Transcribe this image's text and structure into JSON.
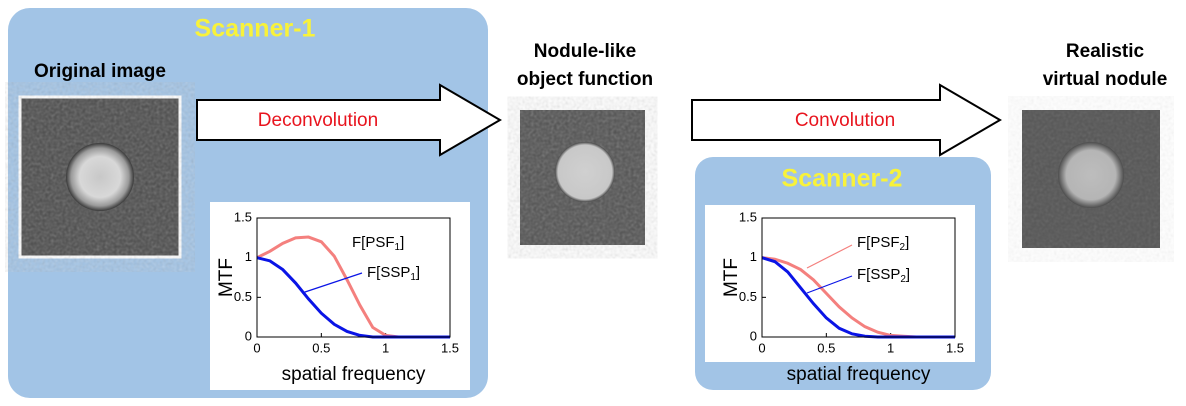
{
  "scanner1": {
    "title": "Scanner-1",
    "chart": {
      "type": "line",
      "xlabel": "spatial frequency",
      "ylabel": "MTF",
      "xlim": [
        0,
        1.5
      ],
      "ylim": [
        0,
        1.5
      ],
      "xticks": [
        0,
        0.5,
        1,
        1.5
      ],
      "yticks": [
        0,
        0.5,
        1,
        1.5
      ],
      "x": [
        0,
        0.1,
        0.2,
        0.3,
        0.4,
        0.5,
        0.6,
        0.7,
        0.8,
        0.9,
        1.0,
        1.1,
        1.2,
        1.3,
        1.4,
        1.5
      ],
      "series": [
        {
          "name": [
            "F[PSF",
            "1",
            "]"
          ],
          "color": "#f4807e",
          "values": [
            1,
            1.08,
            1.18,
            1.25,
            1.26,
            1.2,
            1.02,
            0.72,
            0.4,
            0.12,
            0.02,
            0,
            0,
            0,
            0,
            0
          ]
        },
        {
          "name": [
            "F[SSP",
            "1",
            "]"
          ],
          "color": "#0a14e6",
          "values": [
            1,
            0.96,
            0.85,
            0.68,
            0.48,
            0.3,
            0.16,
            0.07,
            0.02,
            0,
            0,
            0,
            0,
            0,
            0,
            0
          ]
        }
      ]
    }
  },
  "original_image": {
    "label": "Original image"
  },
  "arrow1": {
    "label": "Deconvolution"
  },
  "object_function": {
    "label_lines": [
      "Nodule-like",
      "object function"
    ]
  },
  "arrow2": {
    "label": "Convolution"
  },
  "scanner2": {
    "title": "Scanner-2",
    "chart": {
      "type": "line",
      "xlabel": "spatial frequency",
      "ylabel": "MTF",
      "xlim": [
        0,
        1.5
      ],
      "ylim": [
        0,
        1.5
      ],
      "xticks": [
        0,
        0.5,
        1,
        1.5
      ],
      "yticks": [
        0,
        0.5,
        1,
        1.5
      ],
      "x": [
        0,
        0.1,
        0.2,
        0.3,
        0.4,
        0.5,
        0.6,
        0.7,
        0.8,
        0.9,
        1.0,
        1.1,
        1.2,
        1.3,
        1.4,
        1.5
      ],
      "series": [
        {
          "name": [
            "F[PSF",
            "2",
            "]"
          ],
          "color": "#f4807e",
          "values": [
            1,
            0.98,
            0.93,
            0.85,
            0.72,
            0.55,
            0.38,
            0.24,
            0.13,
            0.06,
            0.02,
            0.01,
            0,
            0,
            0,
            0
          ]
        },
        {
          "name": [
            "F[SSP",
            "2",
            "]"
          ],
          "color": "#0a14e6",
          "values": [
            1,
            0.95,
            0.82,
            0.62,
            0.42,
            0.24,
            0.11,
            0.04,
            0.01,
            0,
            0,
            0,
            0,
            0,
            0,
            0
          ]
        }
      ]
    }
  },
  "virtual_nodule": {
    "label_lines": [
      "Realistic",
      "virtual nodule"
    ]
  }
}
